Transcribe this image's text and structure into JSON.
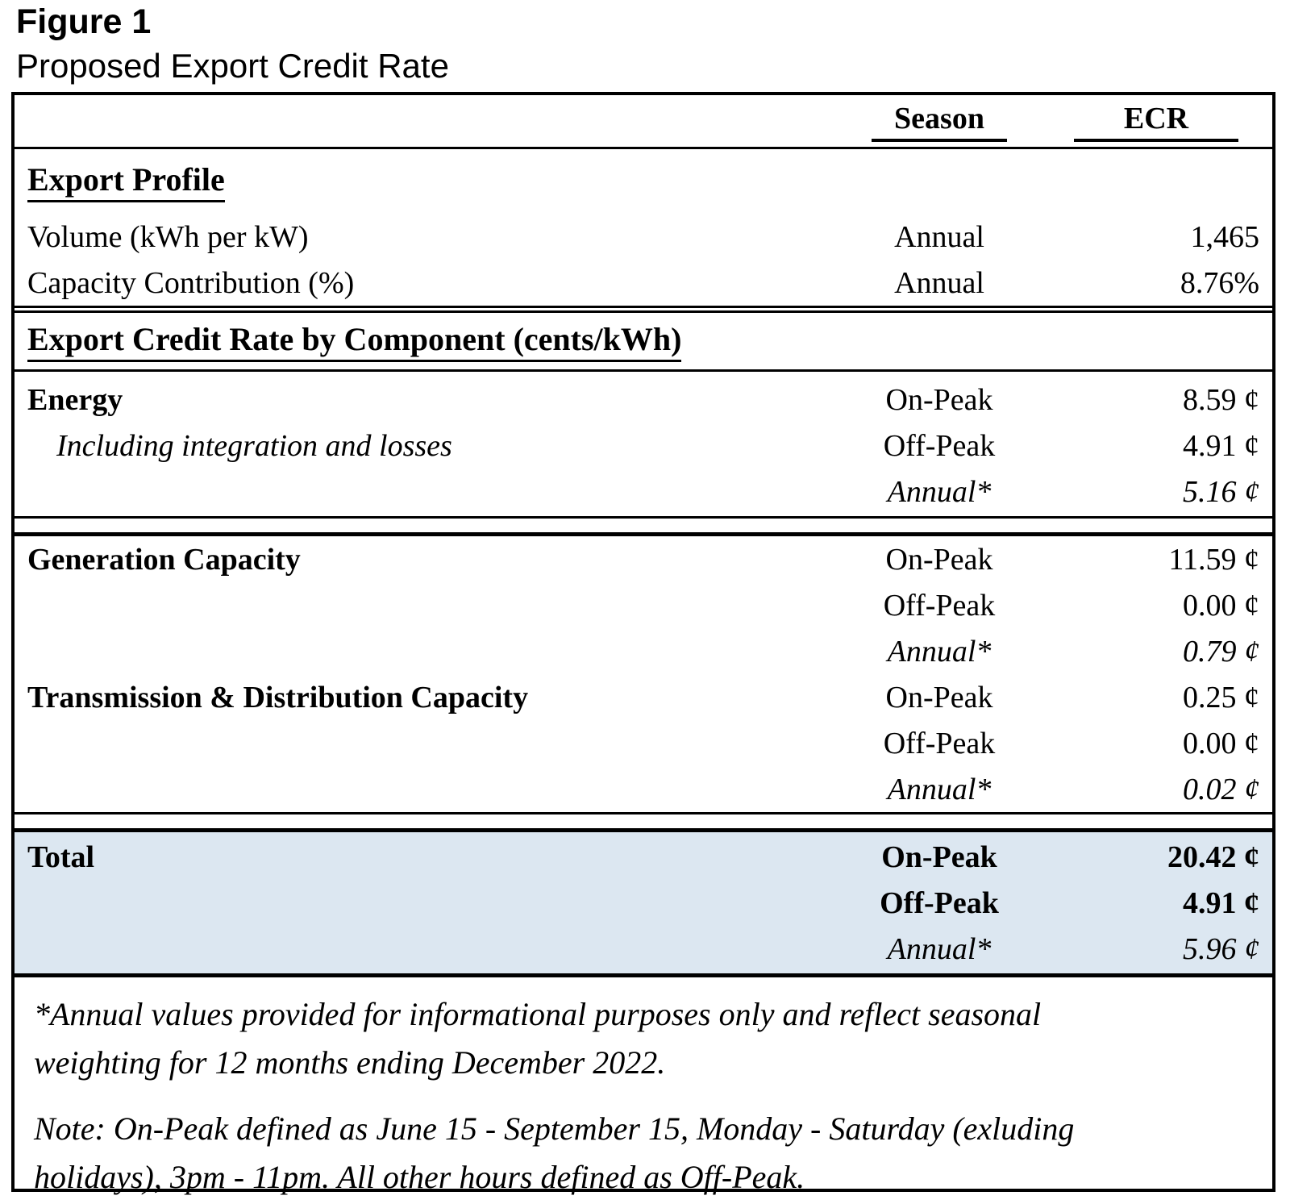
{
  "title": "Figure 1",
  "subtitle": "Proposed Export Credit Rate",
  "colors": {
    "text": "#000000",
    "total_section_bg": "#dce7f1",
    "border": "#000000"
  },
  "table": {
    "columns": {
      "season": "Season",
      "ecr": "ECR"
    },
    "export_profile": {
      "heading": "Export Profile",
      "rows": [
        {
          "label": "Volume (kWh per kW)",
          "season": "Annual",
          "ecr": "1,465"
        },
        {
          "label": "Capacity Contribution (%)",
          "season": "Annual",
          "ecr": "8.76%"
        }
      ]
    },
    "component_heading": "Export Credit Rate by Component (cents/kWh)",
    "energy": {
      "rows": [
        {
          "label": "Energy",
          "season": "On-Peak",
          "ecr": "8.59 ¢"
        },
        {
          "label": "Including integration and losses",
          "season": "Off-Peak",
          "ecr": "4.91 ¢"
        },
        {
          "label": "",
          "season": "Annual*",
          "ecr": "5.16 ¢"
        }
      ]
    },
    "generation_capacity": {
      "rows": [
        {
          "label": "Generation Capacity",
          "season": "On-Peak",
          "ecr": "11.59 ¢"
        },
        {
          "label": "",
          "season": "Off-Peak",
          "ecr": "0.00 ¢"
        },
        {
          "label": "",
          "season": "Annual*",
          "ecr": "0.79 ¢"
        }
      ]
    },
    "transmission_distribution": {
      "rows": [
        {
          "label": "Transmission & Distribution Capacity",
          "season": "On-Peak",
          "ecr": "0.25 ¢"
        },
        {
          "label": "",
          "season": "Off-Peak",
          "ecr": "0.00 ¢"
        },
        {
          "label": "",
          "season": "Annual*",
          "ecr": "0.02 ¢"
        }
      ]
    },
    "total": {
      "rows": [
        {
          "label": "Total",
          "season": "On-Peak",
          "ecr": "20.42 ¢"
        },
        {
          "label": "",
          "season": "Off-Peak",
          "ecr": "4.91 ¢"
        },
        {
          "label": "",
          "season": "Annual*",
          "ecr": "5.96 ¢"
        }
      ]
    }
  },
  "footnotes": {
    "asterisk": {
      "line1": "*Annual values provided for informational purposes only and reflect seasonal",
      "line2": "weighting for 12 months ending December 2022."
    },
    "note": {
      "line1": "Note: On-Peak defined as June 15 - September 15, Monday - Saturday (exluding",
      "line2": "holidays), 3pm - 11pm. All other hours defined as Off-Peak."
    }
  }
}
